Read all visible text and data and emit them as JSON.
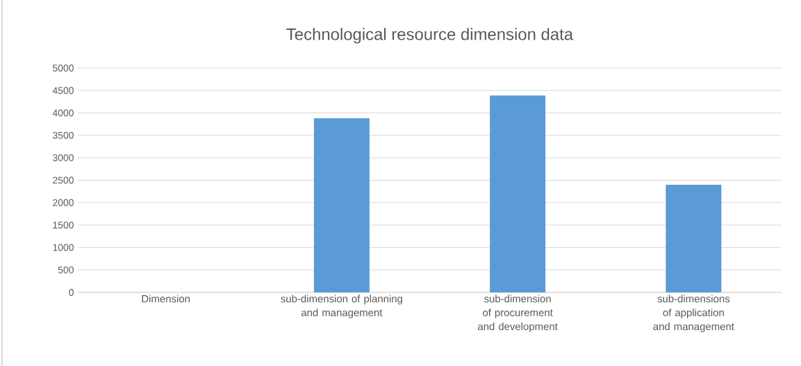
{
  "chart_data": {
    "type": "bar",
    "title": "Technological resource dimension data",
    "categories": [
      "Dimension",
      "sub-dimension of planning and management",
      "sub-dimension of procurement and development",
      "sub-dimensions of application and management"
    ],
    "values": [
      0,
      3880,
      4390,
      2400
    ],
    "color": "#5b9bd5",
    "ylim": [
      0,
      5000
    ],
    "yticks": [
      0,
      500,
      1000,
      1500,
      2000,
      2500,
      3000,
      3500,
      4000,
      4500,
      5000
    ],
    "grid": "y"
  }
}
